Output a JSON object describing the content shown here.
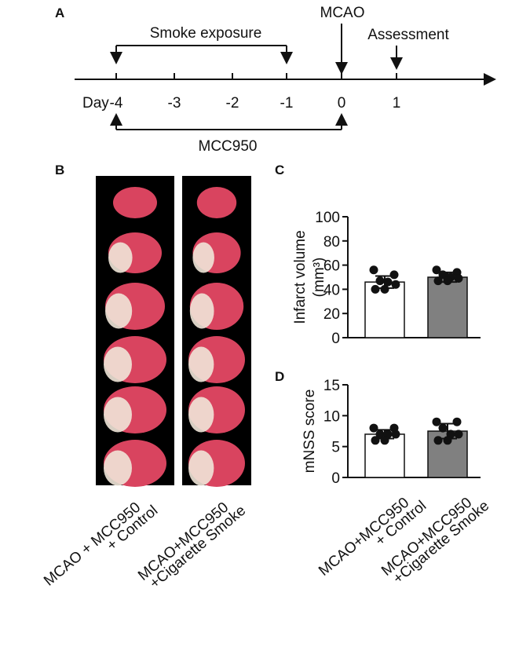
{
  "panels": [
    "A",
    "B",
    "C",
    "D"
  ],
  "timeline": {
    "exposure": "Smoke exposure",
    "mcao": "MCAO",
    "assessment": "Assessment",
    "day": "Day",
    "ticks": [
      -4,
      -3,
      -2,
      -1,
      0,
      1
    ],
    "drug": "MCC950"
  },
  "images": {
    "groups": [
      [
        "MCAO + MCC950",
        "+ Control"
      ],
      [
        "MCAO+MCC950",
        "+Cigarette Smoke"
      ]
    ]
  },
  "chart_data": [
    {
      "type": "bar",
      "ylabel": [
        "Infarct volume",
        "(mm³)"
      ],
      "ylim": [
        0,
        100
      ],
      "yticks": [
        0,
        20,
        40,
        60,
        80,
        100
      ],
      "values": [
        46,
        50
      ],
      "errors": [
        5,
        4
      ],
      "colors": [
        "#ffffff",
        "#808080"
      ],
      "points": [
        [
          56,
          52,
          47,
          46,
          44,
          40,
          40
        ],
        [
          56,
          54,
          52,
          50,
          49,
          47,
          47
        ]
      ]
    },
    {
      "type": "bar",
      "ylabel": [
        "mNSS score"
      ],
      "ylim": [
        0,
        15
      ],
      "yticks": [
        0,
        5,
        10,
        15
      ],
      "values": [
        7,
        7.5
      ],
      "errors": [
        0.7,
        1.2
      ],
      "colors": [
        "#ffffff",
        "#808080"
      ],
      "points": [
        [
          8,
          8,
          7,
          7,
          7,
          6,
          6
        ],
        [
          9,
          9,
          8,
          7,
          7,
          6,
          6
        ]
      ],
      "categories": [
        [
          "MCAO+MCC950",
          "+ Control"
        ],
        [
          "MCAO+MCC950",
          "+Cigarette Smoke"
        ]
      ]
    }
  ]
}
